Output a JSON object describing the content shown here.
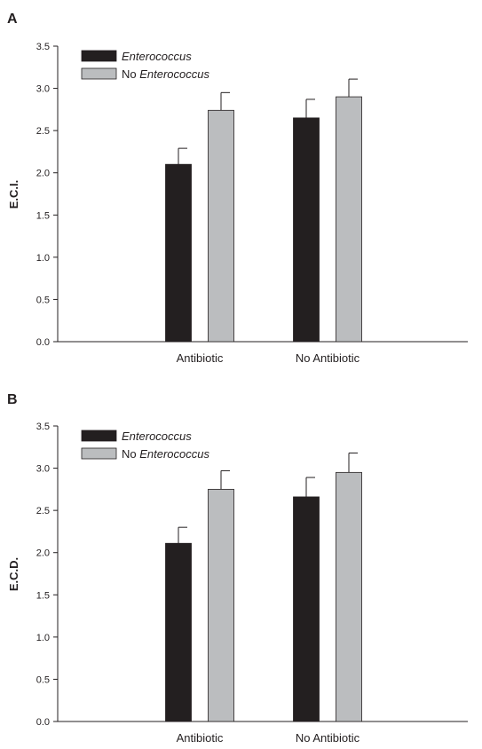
{
  "chart_data": [
    {
      "panel": "A",
      "type": "bar",
      "ylabel": "E.C.I.",
      "xlabel": "",
      "ylim": [
        0,
        3.5
      ],
      "yticks": [
        "0.0",
        "0.5",
        "1.0",
        "1.5",
        "2.0",
        "2.5",
        "3.0",
        "3.5"
      ],
      "categories": [
        "Antibiotic",
        "No Antibiotic"
      ],
      "legend": {
        "position": "top-left",
        "entries": [
          {
            "prefix": "",
            "italic": "Enterococcus"
          },
          {
            "prefix": "No ",
            "italic": "Enterococcus"
          }
        ]
      },
      "series": [
        {
          "name": "Enterococcus",
          "color": "#231f20",
          "values": [
            2.1,
            2.65
          ],
          "errors": [
            0.19,
            0.22
          ]
        },
        {
          "name": "No Enterococcus",
          "color": "#bbbdbf",
          "values": [
            2.74,
            2.9
          ],
          "errors": [
            0.21,
            0.21
          ]
        }
      ]
    },
    {
      "panel": "B",
      "type": "bar",
      "ylabel": "E.C.D.",
      "xlabel": "",
      "ylim": [
        0,
        3.5
      ],
      "yticks": [
        "0.0",
        "0.5",
        "1.0",
        "1.5",
        "2.0",
        "2.5",
        "3.0",
        "3.5"
      ],
      "categories": [
        "Antibiotic",
        "No Antibiotic"
      ],
      "legend": {
        "position": "top-left",
        "entries": [
          {
            "prefix": "",
            "italic": "Enterococcus"
          },
          {
            "prefix": "No ",
            "italic": "Enterococcus"
          }
        ]
      },
      "series": [
        {
          "name": "Enterococcus",
          "color": "#231f20",
          "values": [
            2.11,
            2.66
          ],
          "errors": [
            0.19,
            0.23
          ]
        },
        {
          "name": "No Enterococcus",
          "color": "#bbbdbf",
          "values": [
            2.75,
            2.95
          ],
          "errors": [
            0.22,
            0.23
          ]
        }
      ]
    }
  ]
}
